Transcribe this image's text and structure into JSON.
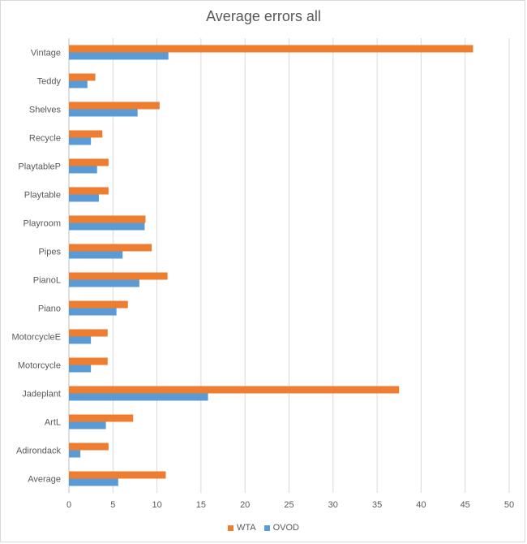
{
  "chart_data": {
    "type": "bar",
    "orientation": "horizontal",
    "title": "Average errors all",
    "xlabel": "",
    "ylabel": "",
    "xlim": [
      0,
      50
    ],
    "xticks": [
      0,
      5,
      10,
      15,
      20,
      25,
      30,
      35,
      40,
      45,
      50
    ],
    "grid": true,
    "legend_position": "bottom",
    "categories": [
      "Vintage",
      "Teddy",
      "Shelves",
      "Recycle",
      "PlaytableP",
      "Playtable",
      "Playroom",
      "Pipes",
      "PianoL",
      "Piano",
      "MotorcycleE",
      "Motorcycle",
      "Jadeplant",
      "ArtL",
      "Adirondack",
      "Average"
    ],
    "series": [
      {
        "name": "WTA",
        "color": "#ed7d31",
        "values": [
          45.9,
          3.0,
          10.3,
          3.8,
          4.5,
          4.5,
          8.7,
          9.4,
          11.2,
          6.7,
          4.4,
          4.4,
          37.5,
          7.3,
          4.5,
          11.0
        ]
      },
      {
        "name": "OVOD",
        "color": "#5b9bd5",
        "values": [
          11.3,
          2.1,
          7.8,
          2.5,
          3.2,
          3.4,
          8.6,
          6.1,
          8.0,
          5.4,
          2.5,
          2.5,
          15.8,
          4.2,
          1.3,
          5.6
        ]
      }
    ]
  }
}
